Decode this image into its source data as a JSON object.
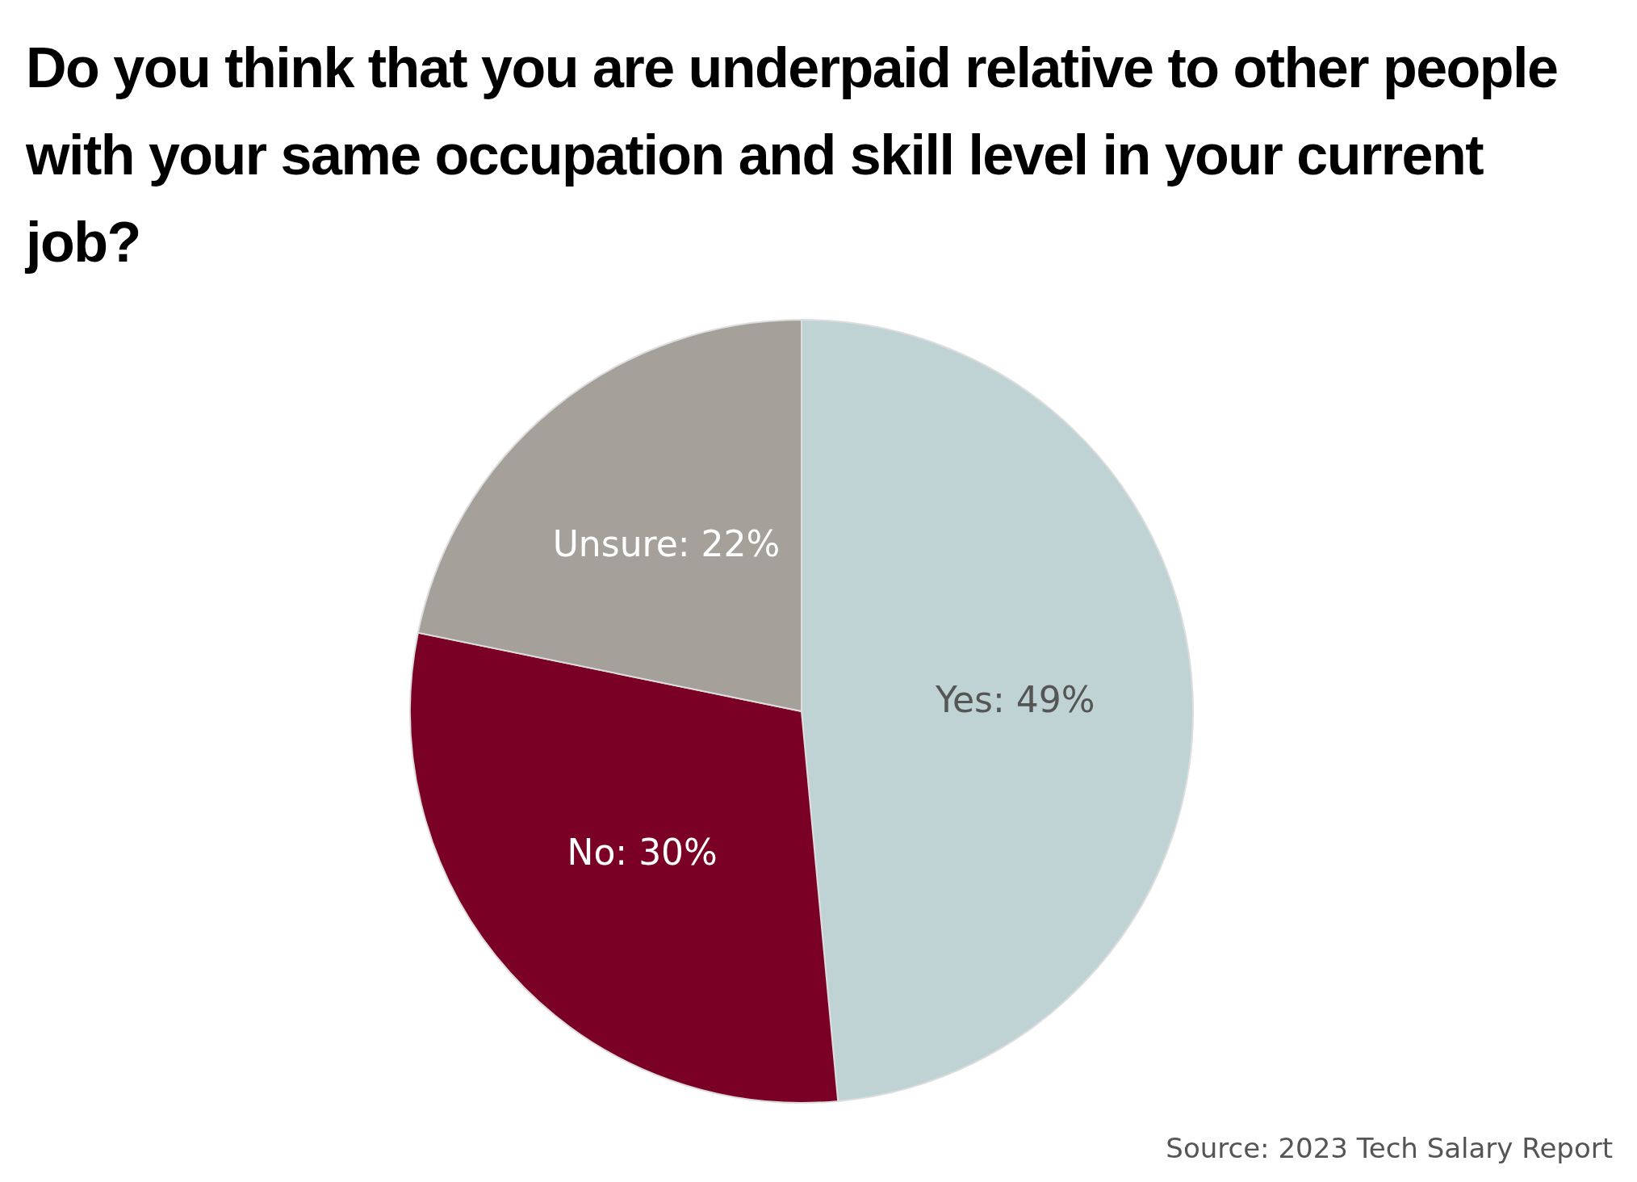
{
  "chart_data": {
    "type": "pie",
    "title": "Do you think that you are underpaid relative to other people with your same occupation and skill level in your current job?",
    "categories": [
      "Yes",
      "No",
      "Unsure"
    ],
    "values": [
      49,
      30,
      22
    ],
    "colors": [
      "#bfd3d4",
      "#7a0026",
      "#a5a099"
    ],
    "value_labels": [
      "49%",
      "30%",
      "22%"
    ],
    "annotations": [
      "Source: 2023 Tech Salary Report"
    ]
  }
}
